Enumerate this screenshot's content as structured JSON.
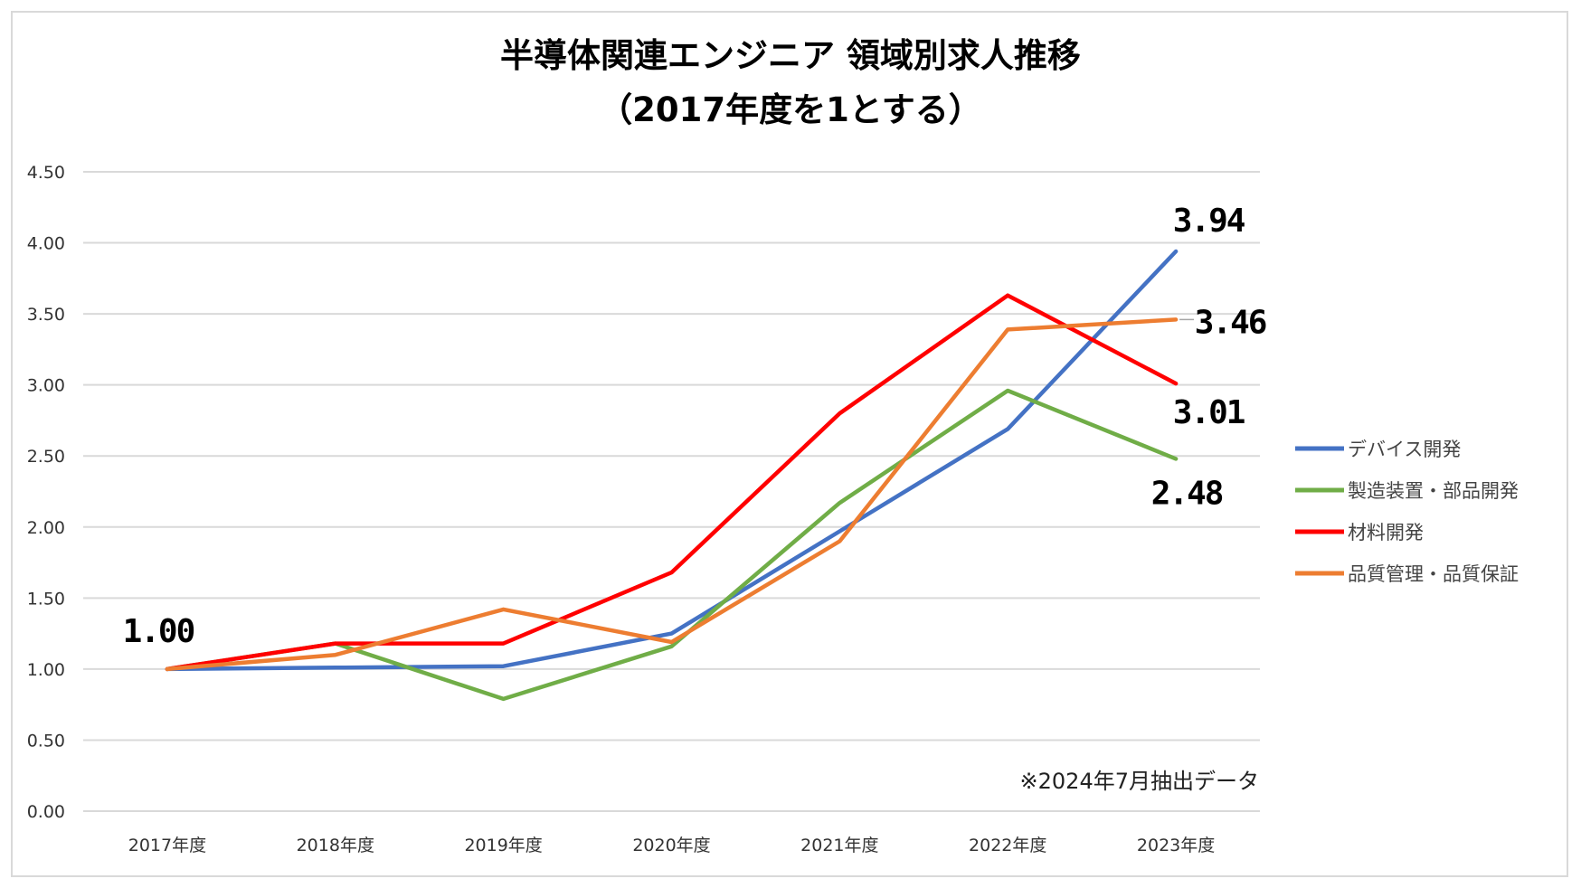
{
  "chart_data": {
    "type": "line",
    "title": "半導体関連エンジニア 領域別求人推移",
    "subtitle": "（2017年度を1とする）",
    "categories": [
      "2017年度",
      "2018年度",
      "2019年度",
      "2020年度",
      "2021年度",
      "2022年度",
      "2023年度"
    ],
    "ylim": [
      0,
      4.5
    ],
    "yticks": [
      "0.00",
      "0.50",
      "1.00",
      "1.50",
      "2.00",
      "2.50",
      "3.00",
      "3.50",
      "4.00",
      "4.50"
    ],
    "grid": true,
    "legend_position": "right",
    "series": [
      {
        "name": "デバイス開発",
        "color": "#4472c4",
        "values": [
          1.0,
          1.01,
          1.02,
          1.25,
          1.97,
          2.69,
          3.94
        ]
      },
      {
        "name": "製造装置・部品開発",
        "color": "#70ad47",
        "values": [
          1.0,
          1.18,
          0.79,
          1.16,
          2.17,
          2.96,
          2.48
        ]
      },
      {
        "name": "材料開発",
        "color": "#ff0000",
        "values": [
          1.0,
          1.18,
          1.18,
          1.68,
          2.8,
          3.63,
          3.01
        ]
      },
      {
        "name": "品質管理・品質保証",
        "color": "#ed7d31",
        "values": [
          1.0,
          1.1,
          1.42,
          1.19,
          1.9,
          3.39,
          3.46
        ]
      }
    ],
    "data_labels": [
      {
        "text": "1.00",
        "series": 0,
        "index": 0
      },
      {
        "text": "3.94",
        "series": 0,
        "index": 6
      },
      {
        "text": "3.46",
        "series": 3,
        "index": 6
      },
      {
        "text": "3.01",
        "series": 2,
        "index": 6
      },
      {
        "text": "2.48",
        "series": 1,
        "index": 6
      }
    ],
    "annotation": "※2024年7月抽出データ"
  }
}
